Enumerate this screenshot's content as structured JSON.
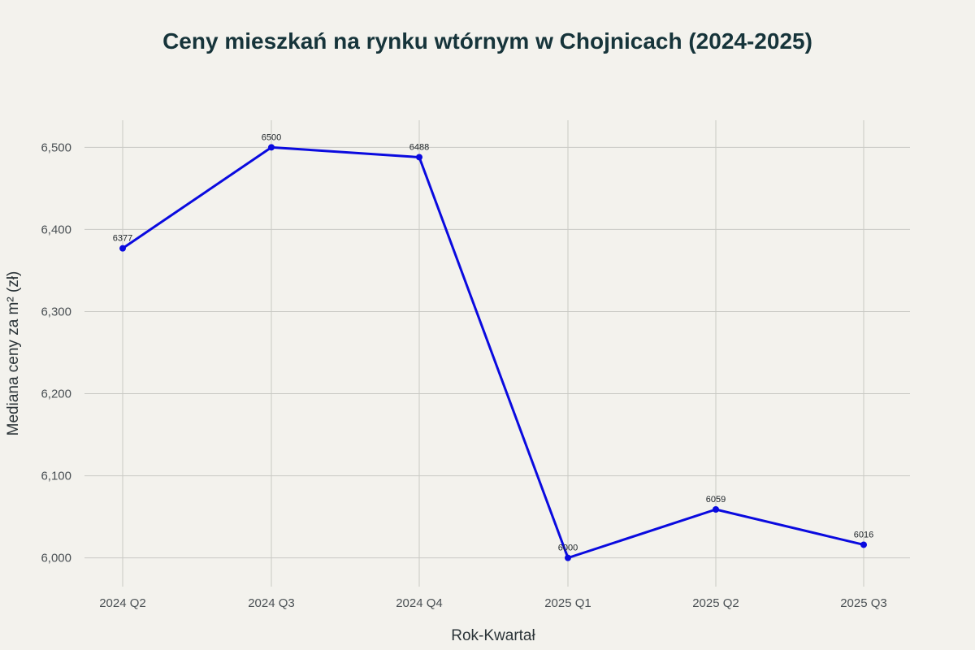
{
  "chart_data": {
    "type": "line",
    "title": "Ceny mieszkań na rynku wtórnym w Chojnicach (2024-2025)",
    "xlabel": "Rok-Kwartał",
    "ylabel": "Mediana ceny za m² (zł)",
    "categories": [
      "2024 Q2",
      "2024 Q3",
      "2024 Q4",
      "2025 Q1",
      "2025 Q2",
      "2025 Q3"
    ],
    "series": [
      {
        "values": [
          6377,
          6500,
          6488,
          6000,
          6059,
          6016
        ],
        "color": "#0a0adf"
      }
    ],
    "data_labels": [
      "6377",
      "6500",
      "6488",
      "6000",
      "6059",
      "6016"
    ],
    "y_ticks": [
      6000,
      6100,
      6200,
      6300,
      6400,
      6500
    ],
    "y_tick_labels": [
      "6,000",
      "6,100",
      "6,200",
      "6,300",
      "6,400",
      "6,500"
    ],
    "ylim": [
      5965,
      6533
    ],
    "grid": true,
    "legend": "none"
  }
}
